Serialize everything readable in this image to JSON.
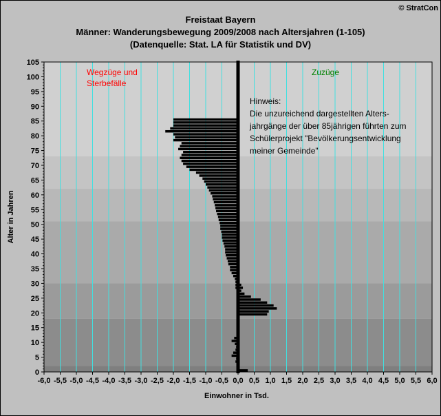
{
  "copyright": "© StratCon",
  "chart_data": {
    "type": "bar",
    "orientation": "horizontal",
    "title_lines": [
      "Freistaat Bayern",
      "Männer: Wanderungsbewegung 2009/2008 nach Altersjahren (1-105)",
      "(Datenquelle: Stat. LA für Statistik und DV)"
    ],
    "xlabel": "Einwohner in Tsd.",
    "ylabel": "Alter in Jahren",
    "xlim": [
      -6.0,
      6.0
    ],
    "ylim": [
      0,
      105
    ],
    "x_ticks": [
      -6.0,
      -5.5,
      -5.0,
      -4.5,
      -4.0,
      -3.5,
      -3.0,
      -2.5,
      -2.0,
      -1.5,
      -1.0,
      -0.5,
      0.0,
      0.5,
      1.0,
      1.5,
      2.0,
      2.5,
      3.0,
      3.5,
      4.0,
      4.5,
      5.0,
      5.5,
      6.0
    ],
    "x_tick_labels": [
      "-6,0",
      "-5,5",
      "-5,0",
      "-4,5",
      "-4,0",
      "-3,5",
      "-3,0",
      "-2,5",
      "-2,0",
      "-1,5",
      "-1,0",
      "-0,5",
      "0,0",
      "0,5",
      "1,0",
      "1,5",
      "2,0",
      "2,5",
      "3,0",
      "3,5",
      "4,0",
      "4,5",
      "5,0",
      "5,5",
      "6,0"
    ],
    "y_ticks": [
      0,
      5,
      10,
      15,
      20,
      25,
      30,
      35,
      40,
      45,
      50,
      55,
      60,
      65,
      70,
      75,
      80,
      85,
      90,
      95,
      100,
      105
    ],
    "y_tick_labels": [
      "0",
      "5",
      "10",
      "15",
      "20",
      "25",
      "30",
      "35",
      "40",
      "45",
      "50",
      "55",
      "60",
      "65",
      "70",
      "75",
      "80",
      "85",
      "90",
      "95",
      "100",
      "105"
    ],
    "bands": [
      {
        "from": 0,
        "to": 2,
        "color": "#7f7f7f"
      },
      {
        "from": 2,
        "to": 18,
        "color": "#8c8c8c"
      },
      {
        "from": 18,
        "to": 30,
        "color": "#9b9b9b"
      },
      {
        "from": 30,
        "to": 51,
        "color": "#aaaaaa"
      },
      {
        "from": 51,
        "to": 62,
        "color": "#b8b8b8"
      },
      {
        "from": 62,
        "to": 73,
        "color": "#c4c4c4"
      },
      {
        "from": 73,
        "to": 105,
        "color": "#d0d0d0"
      }
    ],
    "bar_color": "#000000",
    "grid_color": "#40e0e0",
    "series": [
      {
        "name": "Wegzüge und Sterbefälle",
        "color": "#ff0000",
        "values": [
          -0.03,
          -0.05,
          -0.05,
          -0.08,
          -0.06,
          -0.2,
          -0.15,
          -0.08,
          -0.06,
          -0.1,
          -0.2,
          -0.12,
          -0.05,
          -0.05,
          -0.05,
          -0.05,
          -0.05,
          -0.05,
          -0.05,
          -0.05,
          -0.05,
          -0.05,
          -0.05,
          -0.05,
          -0.05,
          -0.05,
          -0.05,
          -0.05,
          -0.08,
          -0.08,
          -0.08,
          -0.1,
          -0.15,
          -0.2,
          -0.25,
          -0.25,
          -0.3,
          -0.32,
          -0.35,
          -0.38,
          -0.4,
          -0.4,
          -0.42,
          -0.45,
          -0.48,
          -0.5,
          -0.5,
          -0.52,
          -0.55,
          -0.55,
          -0.57,
          -0.6,
          -0.62,
          -0.65,
          -0.68,
          -0.7,
          -0.72,
          -0.75,
          -0.78,
          -0.8,
          -0.85,
          -0.9,
          -0.95,
          -1.0,
          -1.05,
          -1.1,
          -1.2,
          -1.3,
          -1.5,
          -1.6,
          -1.7,
          -1.75,
          -1.8,
          -1.75,
          -1.7,
          -1.85,
          -1.8,
          -1.75,
          -2.0,
          -1.95,
          -2.0,
          -2.25,
          -2.1,
          -2.0,
          -2.0,
          -2.0,
          0,
          0,
          0,
          0,
          0,
          0,
          0,
          0,
          0,
          0,
          0,
          0,
          0,
          0,
          0,
          0,
          0,
          0,
          0,
          0
        ]
      },
      {
        "name": "Zuzüge",
        "color": "#008000",
        "values": [
          0.3,
          0.05,
          0.02,
          0.02,
          0.02,
          0.02,
          0.02,
          0.02,
          0.02,
          0.02,
          0.02,
          0.02,
          0.02,
          0.02,
          0.02,
          0.02,
          0.02,
          0.02,
          0.02,
          0.9,
          0.95,
          1.2,
          1.1,
          0.9,
          0.7,
          0.4,
          0.2,
          0.1,
          0.15,
          0.1,
          0.05,
          0.05,
          0.05,
          0.02,
          0.02,
          0.02,
          0.02,
          0.02,
          0.02,
          0.02,
          0.02,
          0.02,
          0.02,
          0.02,
          0.02,
          0.02,
          0.02,
          0.02,
          0.02,
          0.02,
          0.02,
          0.02,
          0.02,
          0.02,
          0.02,
          0.02,
          0.02,
          0.02,
          0.02,
          0.02,
          0.02,
          0.02,
          0.02,
          0.02,
          0.02,
          0.02,
          0.02,
          0.02,
          0.02,
          0.02,
          0.02,
          0.02,
          0.02,
          0.02,
          0.02,
          0.02,
          0.02,
          0.02,
          0.02,
          0.02,
          0.02,
          0.02,
          0.02,
          0.02,
          0.02,
          0.02,
          0,
          0,
          0,
          0,
          0,
          0,
          0,
          0,
          0,
          0,
          0,
          0,
          0,
          0,
          0,
          0,
          0,
          0,
          0,
          0
        ]
      }
    ],
    "annotations": {
      "left_legend": [
        "Wegzüge und",
        "Sterbefälle"
      ],
      "right_legend": "Zuzüge",
      "note_lines": [
        "Hinweis:",
        "Die unzureichend dargestellten Alters-",
        "jahrgänge der über 85jährigen führten zum",
        "Schülerprojekt \"Bevölkerungsentwicklung",
        "meiner Gemeinde\""
      ]
    }
  }
}
